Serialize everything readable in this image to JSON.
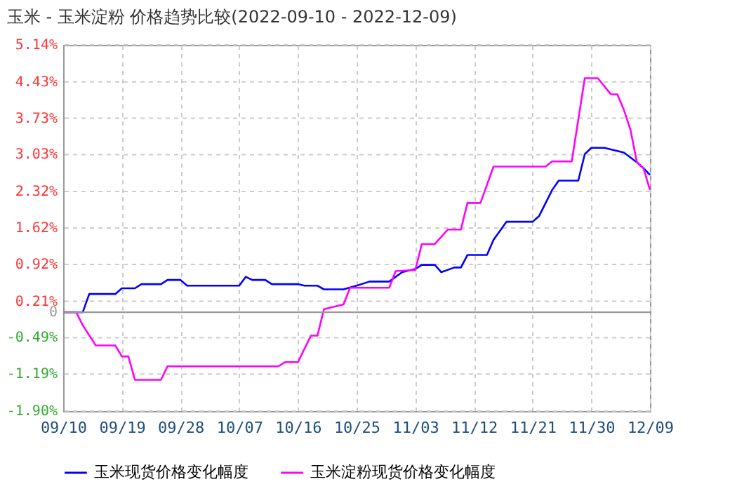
{
  "chart_data": {
    "type": "line",
    "title": "玉米 - 玉米淀粉 价格趋势比较(2022-09-10 - 2022-12-09)",
    "x": [
      "2022-09-10",
      "2022-09-13",
      "2022-09-14",
      "2022-09-18",
      "2022-09-19",
      "2022-09-21",
      "2022-09-22",
      "2022-09-25",
      "2022-09-26",
      "2022-09-28",
      "2022-09-29",
      "2022-10-07",
      "2022-10-08",
      "2022-10-09",
      "2022-10-11",
      "2022-10-12",
      "2022-10-16",
      "2022-10-17",
      "2022-10-19",
      "2022-10-20",
      "2022-10-23",
      "2022-10-25",
      "2022-10-27",
      "2022-10-30",
      "2022-11-01",
      "2022-11-03",
      "2022-11-04",
      "2022-11-06",
      "2022-11-07",
      "2022-11-09",
      "2022-11-10",
      "2022-11-11",
      "2022-11-14",
      "2022-11-15",
      "2022-11-17",
      "2022-11-21",
      "2022-11-22",
      "2022-11-24",
      "2022-11-25",
      "2022-11-28",
      "2022-11-29",
      "2022-11-30",
      "2022-12-02",
      "2022-12-05",
      "2022-12-07",
      "2022-12-08",
      "2022-12-09"
    ],
    "series": [
      {
        "name": "玉米现货价格变化幅度",
        "color": "#0000ff",
        "values": [
          0,
          0,
          0.35,
          0.35,
          0.46,
          0.46,
          0.54,
          0.54,
          0.62,
          0.62,
          0.51,
          0.51,
          0.68,
          0.62,
          0.62,
          0.54,
          0.54,
          0.51,
          0.51,
          0.44,
          0.44,
          0.51,
          0.59,
          0.59,
          0.77,
          0.83,
          0.91,
          0.91,
          0.77,
          0.86,
          0.86,
          1.1,
          1.1,
          1.39,
          1.74,
          1.74,
          1.85,
          2.35,
          2.53,
          2.53,
          3.04,
          3.16,
          3.16,
          3.07,
          2.88,
          2.77,
          2.64
        ]
      },
      {
        "name": "玉米淀粉现货价格变化幅度",
        "color": "#ff00ff",
        "x": [
          "2022-09-10",
          "2022-09-12",
          "2022-09-13",
          "2022-09-15",
          "2022-09-18",
          "2022-09-19",
          "2022-09-20",
          "2022-09-21",
          "2022-09-25",
          "2022-09-26",
          "2022-10-13",
          "2022-10-14",
          "2022-10-16",
          "2022-10-18",
          "2022-10-19",
          "2022-10-20",
          "2022-10-23",
          "2022-10-24",
          "2022-10-30",
          "2022-10-31",
          "2022-11-03",
          "2022-11-04",
          "2022-11-06",
          "2022-11-08",
          "2022-11-10",
          "2022-11-11",
          "2022-11-13",
          "2022-11-15",
          "2022-11-23",
          "2022-11-24",
          "2022-11-27",
          "2022-11-29",
          "2022-12-01",
          "2022-12-03",
          "2022-12-04",
          "2022-12-05",
          "2022-12-06",
          "2022-12-07",
          "2022-12-08",
          "2022-12-09"
        ],
        "values": [
          0,
          0,
          -0.25,
          -0.64,
          -0.64,
          -0.85,
          -0.85,
          -1.3,
          -1.3,
          -1.04,
          -1.04,
          -0.96,
          -0.96,
          -0.45,
          -0.45,
          0.06,
          0.15,
          0.47,
          0.47,
          0.79,
          0.81,
          1.31,
          1.31,
          1.59,
          1.59,
          2.1,
          2.1,
          2.8,
          2.8,
          2.9,
          2.9,
          4.5,
          4.5,
          4.19,
          4.19,
          3.89,
          3.51,
          2.88,
          2.77,
          2.35
        ]
      }
    ],
    "xlim": [
      "2022-09-10",
      "2022-12-09"
    ],
    "xticks": [
      {
        "value": "2022-09-10",
        "label": "09/10"
      },
      {
        "value": "2022-09-19",
        "label": "09/19"
      },
      {
        "value": "2022-09-28",
        "label": "09/28"
      },
      {
        "value": "2022-10-07",
        "label": "10/07"
      },
      {
        "value": "2022-10-16",
        "label": "10/16"
      },
      {
        "value": "2022-10-25",
        "label": "10/25"
      },
      {
        "value": "2022-11-03",
        "label": "11/03"
      },
      {
        "value": "2022-11-12",
        "label": "11/12"
      },
      {
        "value": "2022-11-21",
        "label": "11/21"
      },
      {
        "value": "2022-11-30",
        "label": "11/30"
      },
      {
        "value": "2022-12-09",
        "label": "12/09"
      }
    ],
    "ylim": [
      -1.9,
      5.14
    ],
    "yticks": [
      {
        "value": -1.9,
        "label": "-1.90%"
      },
      {
        "value": -1.19,
        "label": "-1.19%"
      },
      {
        "value": -0.49,
        "label": "-0.49%"
      },
      0,
      {
        "value": 0.21,
        "label": "0.21%"
      },
      {
        "value": 0.92,
        "label": "0.92%"
      },
      {
        "value": 1.62,
        "label": "1.62%"
      },
      {
        "value": 2.32,
        "label": "2.32%"
      },
      {
        "value": 3.03,
        "label": "3.03%"
      },
      {
        "value": 3.73,
        "label": "3.73%"
      },
      {
        "value": 4.43,
        "label": "4.43%"
      },
      {
        "value": 5.14,
        "label": "5.14%"
      }
    ],
    "ref_lines": [
      {
        "axis": "y",
        "value": 0,
        "color": "#999999"
      }
    ],
    "grid": true,
    "legend": "bottom",
    "marker": "none",
    "line_style": "solid"
  }
}
